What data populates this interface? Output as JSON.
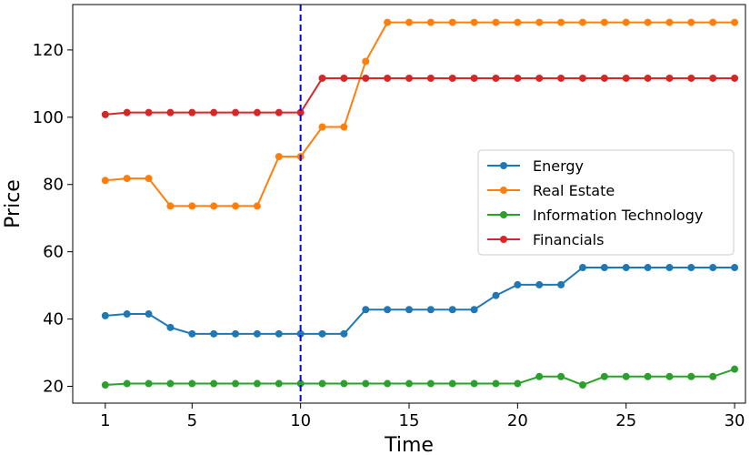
{
  "chart_data": {
    "type": "line",
    "xlabel": "Time",
    "ylabel": "Price",
    "xlim": [
      -0.5,
      30.5
    ],
    "ylim": [
      15,
      133.5
    ],
    "xticks": [
      1,
      5,
      10,
      15,
      20,
      25,
      30
    ],
    "yticks": [
      20,
      40,
      60,
      80,
      100,
      120
    ],
    "grid": false,
    "legend_position": "center-right",
    "vline": {
      "x": 10,
      "color": "#0000ff",
      "style": "dashed"
    },
    "x": [
      1,
      2,
      3,
      4,
      5,
      6,
      7,
      8,
      9,
      10,
      11,
      12,
      13,
      14,
      15,
      16,
      17,
      18,
      19,
      20,
      21,
      22,
      23,
      24,
      25,
      26,
      27,
      28,
      29,
      30
    ],
    "series": [
      {
        "name": "Energy",
        "color": "#1f77b4",
        "values": [
          41,
          41.5,
          41.5,
          37.5,
          35.6,
          35.6,
          35.6,
          35.6,
          35.6,
          35.6,
          35.6,
          35.6,
          42.8,
          42.8,
          42.8,
          42.8,
          42.8,
          42.8,
          47,
          50.2,
          50.2,
          50.2,
          55.3,
          55.3,
          55.3,
          55.3,
          55.3,
          55.3,
          55.3,
          55.3
        ]
      },
      {
        "name": "Real Estate",
        "color": "#ff7f0e",
        "values": [
          81.2,
          81.8,
          81.8,
          73.6,
          73.6,
          73.6,
          73.6,
          73.6,
          88.3,
          88.3,
          97.1,
          97.1,
          116.6,
          128.2,
          128.2,
          128.2,
          128.2,
          128.2,
          128.2,
          128.2,
          128.2,
          128.2,
          128.2,
          128.2,
          128.2,
          128.2,
          128.2,
          128.2,
          128.2,
          128.2
        ]
      },
      {
        "name": "Information Technology",
        "color": "#2ca02c",
        "values": [
          20.4,
          20.8,
          20.8,
          20.8,
          20.8,
          20.8,
          20.8,
          20.8,
          20.8,
          20.8,
          20.8,
          20.8,
          20.8,
          20.8,
          20.8,
          20.8,
          20.8,
          20.8,
          20.8,
          20.8,
          22.9,
          22.9,
          20.4,
          22.9,
          22.9,
          22.9,
          22.9,
          22.9,
          22.9,
          25.1
        ]
      },
      {
        "name": "Financials",
        "color": "#d62728",
        "values": [
          100.8,
          101.4,
          101.4,
          101.4,
          101.4,
          101.4,
          101.4,
          101.4,
          101.4,
          101.4,
          111.6,
          111.6,
          111.6,
          111.6,
          111.6,
          111.6,
          111.6,
          111.6,
          111.6,
          111.6,
          111.6,
          111.6,
          111.6,
          111.6,
          111.6,
          111.6,
          111.6,
          111.6,
          111.6,
          111.6
        ]
      }
    ]
  }
}
